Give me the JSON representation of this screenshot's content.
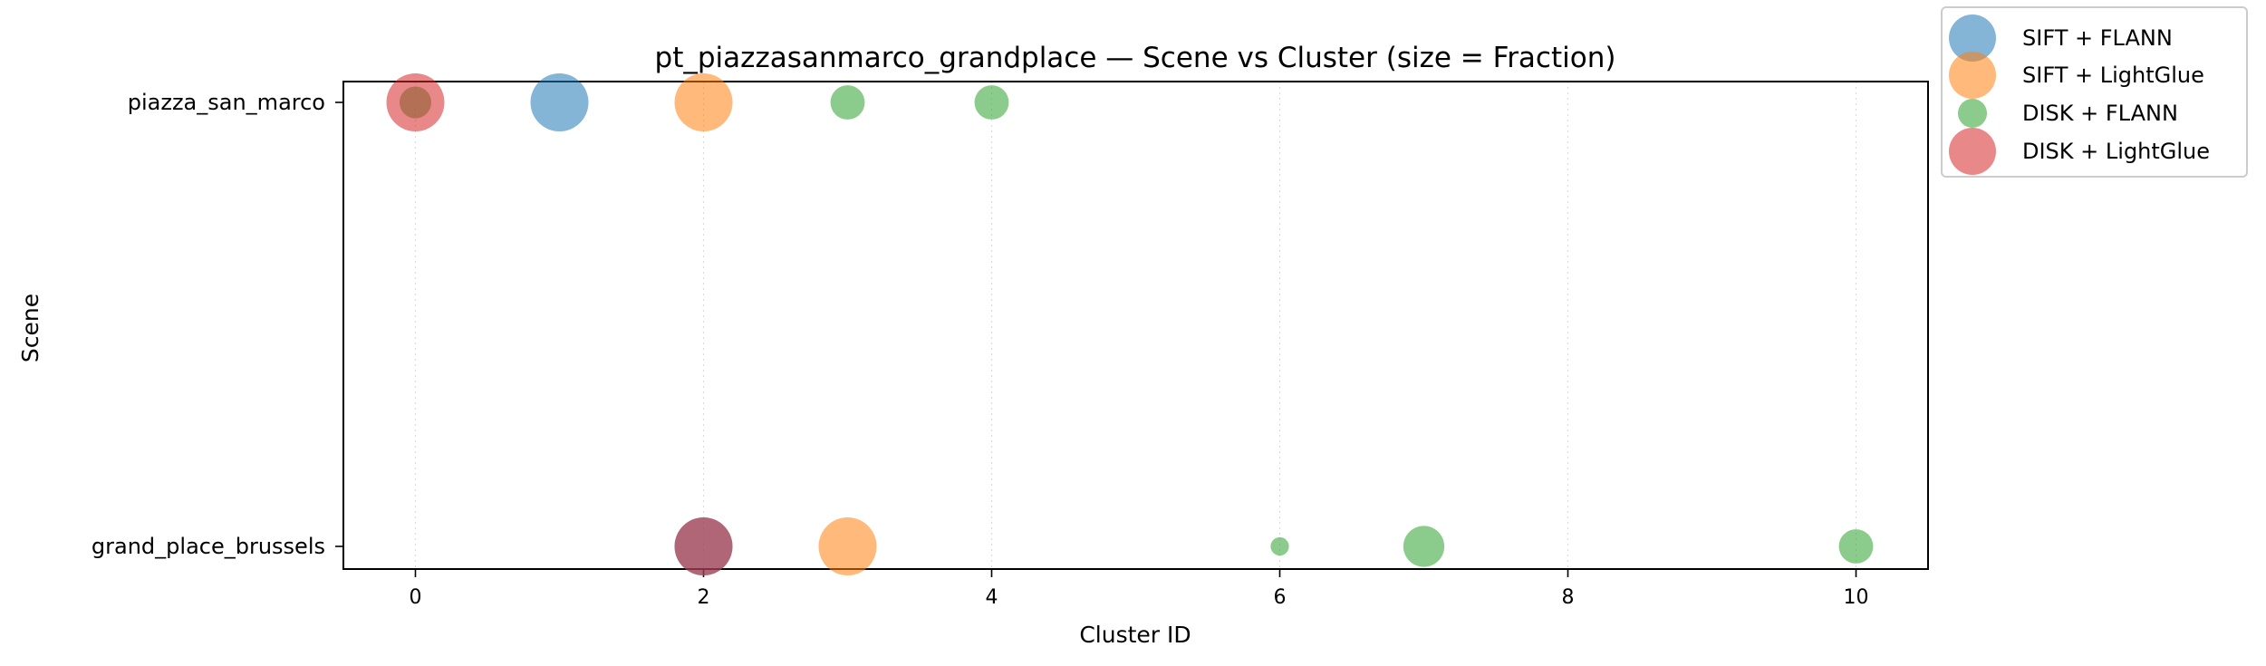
{
  "chart_data": {
    "type": "scatter",
    "title": "pt_piazzasanmarco_grandplace — Scene vs Cluster (size = Fraction)",
    "xlabel": "Cluster ID",
    "ylabel": "Scene",
    "xlim": [
      -0.5,
      10.5
    ],
    "xticks": [
      0,
      2,
      4,
      6,
      8,
      10
    ],
    "categories": [
      "grand_place_brussels",
      "piazza_san_marco"
    ],
    "grid": "x-dotted",
    "legend_position": "outside-top-right",
    "series": [
      {
        "name": "SIFT + FLANN",
        "color": "#1f77b4",
        "points": [
          {
            "x": 1,
            "scene": "piazza_san_marco",
            "fraction": 1.0
          },
          {
            "x": 2,
            "scene": "grand_place_brussels",
            "fraction": 1.0
          }
        ]
      },
      {
        "name": "SIFT + LightGlue",
        "color": "#ff7f0e",
        "points": [
          {
            "x": 2,
            "scene": "piazza_san_marco",
            "fraction": 1.0
          },
          {
            "x": 3,
            "scene": "grand_place_brussels",
            "fraction": 1.0
          }
        ]
      },
      {
        "name": "DISK + FLANN",
        "color": "#2ca02c",
        "points": [
          {
            "x": 0,
            "scene": "piazza_san_marco",
            "fraction": 0.3
          },
          {
            "x": 3,
            "scene": "piazza_san_marco",
            "fraction": 0.35
          },
          {
            "x": 4,
            "scene": "piazza_san_marco",
            "fraction": 0.35
          },
          {
            "x": 6,
            "scene": "grand_place_brussels",
            "fraction": 0.1
          },
          {
            "x": 7,
            "scene": "grand_place_brussels",
            "fraction": 0.5
          },
          {
            "x": 10,
            "scene": "grand_place_brussels",
            "fraction": 0.35
          }
        ]
      },
      {
        "name": "DISK + LightGlue",
        "color": "#d62728",
        "points": [
          {
            "x": 0,
            "scene": "piazza_san_marco",
            "fraction": 1.0
          },
          {
            "x": 2,
            "scene": "grand_place_brussels",
            "fraction": 1.0
          }
        ]
      }
    ]
  }
}
